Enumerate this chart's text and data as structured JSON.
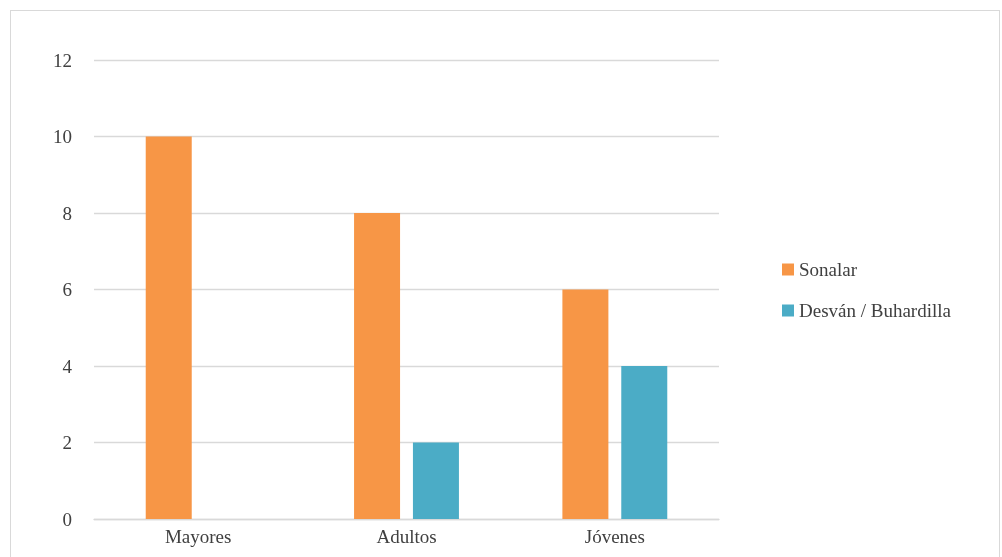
{
  "chart_data": {
    "type": "bar",
    "categories": [
      "Mayores",
      "Adultos",
      "Jóvenes"
    ],
    "series": [
      {
        "name": "Sonalar",
        "color": "#f79646",
        "values": [
          10,
          8,
          6
        ]
      },
      {
        "name": "Desván / Buhardilla",
        "color": "#4bacc6",
        "values": [
          0,
          2,
          4
        ]
      }
    ],
    "ylim": [
      0,
      12
    ],
    "yticks": [
      0,
      2,
      4,
      6,
      8,
      10,
      12
    ],
    "grid": "y",
    "legend": "right"
  }
}
